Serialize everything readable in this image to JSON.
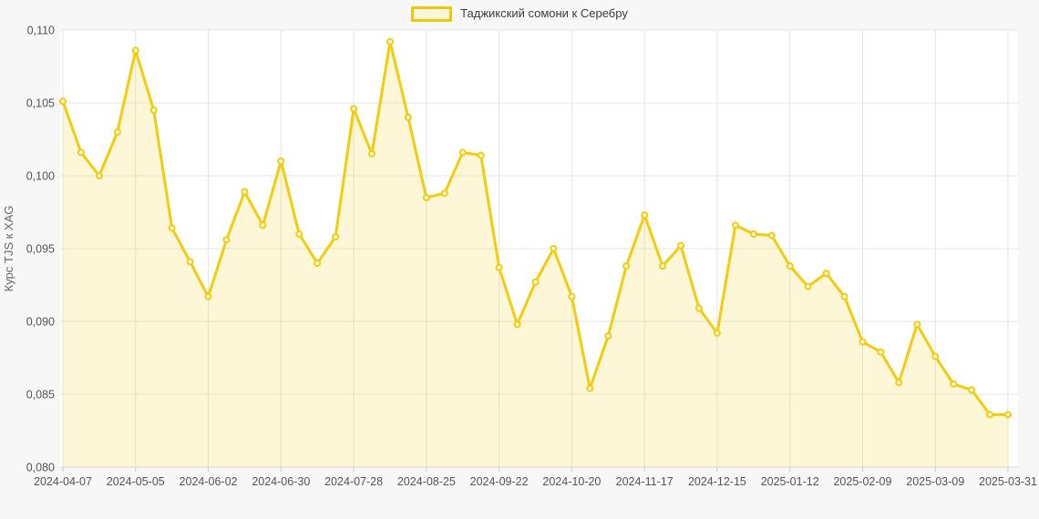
{
  "legend": {
    "label": "Таджикский сомони к Серебру"
  },
  "colors": {
    "page_bg": "#f7f7f7",
    "plot_bg": "#ffffff",
    "gridline": "#e4e4e4",
    "axis_line": "#d9d9d9",
    "tick_mark": "#c9c9c9",
    "tick_text": "#545454",
    "axis_title_text": "#666666",
    "line": "#f2cc0e",
    "area_fill": "rgba(242,204,14,0.16)",
    "marker_fill": "#fdf8e3"
  },
  "chart_data": {
    "type": "area",
    "title": "",
    "xlabel": "",
    "ylabel": "Курс TJS к XAG",
    "grid": true,
    "legend_position": "top-center",
    "ylim": [
      0.08,
      0.11
    ],
    "y_ticks": [
      {
        "label": "0,110",
        "value": 0.11
      },
      {
        "label": "0,105",
        "value": 0.105
      },
      {
        "label": "0,100",
        "value": 0.1
      },
      {
        "label": "0,095",
        "value": 0.095
      },
      {
        "label": "0,090",
        "value": 0.09
      },
      {
        "label": "0,085",
        "value": 0.085
      },
      {
        "label": "0,080",
        "value": 0.08
      }
    ],
    "x_ticks": [
      {
        "label": "2024-04-07",
        "index": 0
      },
      {
        "label": "2024-05-05",
        "index": 4
      },
      {
        "label": "2024-06-02",
        "index": 8
      },
      {
        "label": "2024-06-30",
        "index": 12
      },
      {
        "label": "2024-07-28",
        "index": 16
      },
      {
        "label": "2024-08-25",
        "index": 20
      },
      {
        "label": "2024-09-22",
        "index": 24
      },
      {
        "label": "2024-10-20",
        "index": 28
      },
      {
        "label": "2024-11-17",
        "index": 32
      },
      {
        "label": "2024-12-15",
        "index": 36
      },
      {
        "label": "2025-01-12",
        "index": 40
      },
      {
        "label": "2025-02-09",
        "index": 44
      },
      {
        "label": "2025-03-09",
        "index": 48
      },
      {
        "label": "2025-03-31",
        "index": 52
      }
    ],
    "series": [
      {
        "name": "Таджикский сомони к Серебру",
        "x": [
          "2024-04-07",
          "2024-04-14",
          "2024-04-21",
          "2024-04-28",
          "2024-05-05",
          "2024-05-12",
          "2024-05-19",
          "2024-05-26",
          "2024-06-02",
          "2024-06-09",
          "2024-06-16",
          "2024-06-23",
          "2024-06-30",
          "2024-07-07",
          "2024-07-14",
          "2024-07-21",
          "2024-07-28",
          "2024-08-04",
          "2024-08-11",
          "2024-08-18",
          "2024-08-25",
          "2024-09-01",
          "2024-09-08",
          "2024-09-15",
          "2024-09-22",
          "2024-09-29",
          "2024-10-06",
          "2024-10-13",
          "2024-10-20",
          "2024-10-27",
          "2024-11-03",
          "2024-11-10",
          "2024-11-17",
          "2024-11-24",
          "2024-12-01",
          "2024-12-08",
          "2024-12-15",
          "2024-12-22",
          "2024-12-29",
          "2025-01-05",
          "2025-01-12",
          "2025-01-19",
          "2025-01-26",
          "2025-02-02",
          "2025-02-09",
          "2025-02-16",
          "2025-02-23",
          "2025-03-02",
          "2025-03-09",
          "2025-03-16",
          "2025-03-23",
          "2025-03-30",
          "2025-03-31"
        ],
        "values": [
          0.1051,
          0.1016,
          0.1,
          0.103,
          0.1086,
          0.1045,
          0.0964,
          0.0941,
          0.0917,
          0.0956,
          0.0989,
          0.0966,
          0.101,
          0.096,
          0.094,
          0.0958,
          0.1046,
          0.1015,
          0.1092,
          0.104,
          0.0985,
          0.0988,
          0.1016,
          0.1014,
          0.0937,
          0.0898,
          0.0927,
          0.095,
          0.0917,
          0.0854,
          0.089,
          0.0938,
          0.0973,
          0.0938,
          0.0952,
          0.0909,
          0.0892,
          0.0966,
          0.096,
          0.0959,
          0.0938,
          0.0924,
          0.0933,
          0.0917,
          0.0886,
          0.0879,
          0.0858,
          0.0898,
          0.0876,
          0.0857,
          0.0853,
          0.0836,
          0.0836
        ]
      }
    ]
  }
}
